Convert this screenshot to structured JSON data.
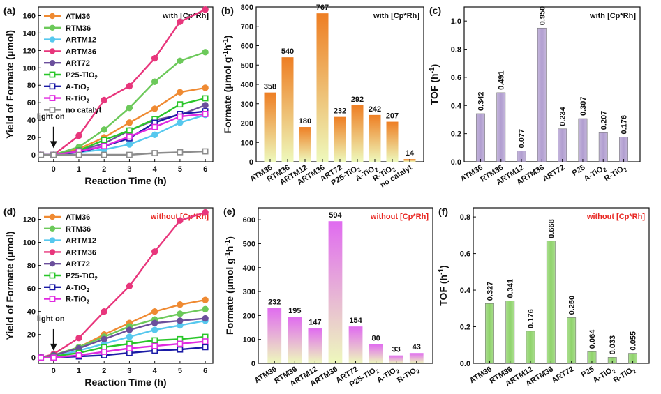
{
  "chart_data": [
    {
      "panel": "(a)",
      "type": "line",
      "annotation": "with [Cp*Rh]",
      "annotation_color": "#111111",
      "xlabel": "Reaction Time (h)",
      "ylabel": "Yield of Formate (μmol)",
      "xlim": [
        -0.6,
        6.3
      ],
      "ylim": [
        -8,
        170
      ],
      "xticks": [
        0,
        1,
        2,
        3,
        4,
        5,
        6
      ],
      "yticks": [
        0,
        20,
        40,
        60,
        80,
        100,
        120,
        140,
        160
      ],
      "x": [
        -0.5,
        0,
        1,
        2,
        3,
        4,
        5,
        6
      ],
      "light_on_label": "light on",
      "light_on_x": 0,
      "legend_position": "top-left",
      "series": [
        {
          "name": "ATM36",
          "color": "#ef8a32",
          "marker": "filled",
          "values": [
            0,
            0,
            7,
            20,
            37,
            53,
            72,
            77
          ]
        },
        {
          "name": "RTM36",
          "color": "#6cc95a",
          "marker": "filled",
          "values": [
            0,
            0,
            9,
            29,
            54,
            84,
            108,
            118
          ]
        },
        {
          "name": "ARTM12",
          "color": "#56c8ee",
          "marker": "filled",
          "values": [
            0,
            0,
            3,
            6,
            12,
            23,
            37,
            46
          ]
        },
        {
          "name": "ARTM36",
          "color": "#e8367c",
          "marker": "filled",
          "values": [
            0,
            0,
            22,
            63,
            79,
            111,
            153,
            167
          ]
        },
        {
          "name": "ART72",
          "color": "#6b4f9c",
          "marker": "filled",
          "values": [
            0,
            0,
            5,
            13,
            28,
            40,
            46,
            57
          ]
        },
        {
          "name": "P25-TiO2",
          "color": "#29c629",
          "marker": "open",
          "values": [
            0,
            0,
            5,
            17,
            28,
            41,
            58,
            65
          ]
        },
        {
          "name": "A-TiO2",
          "color": "#1a1aa6",
          "marker": "open",
          "values": [
            0,
            0,
            3,
            10,
            19,
            37,
            47,
            50
          ]
        },
        {
          "name": "R-TiO2",
          "color": "#e02ae0",
          "marker": "open",
          "values": [
            0,
            0,
            4,
            10,
            21,
            32,
            44,
            47
          ]
        },
        {
          "name": "no catalyt",
          "color": "#8c8c8c",
          "marker": "open",
          "values": [
            0,
            0,
            0,
            0,
            0,
            2,
            3,
            4
          ]
        }
      ]
    },
    {
      "panel": "(b)",
      "type": "bar",
      "annotation": "with [Cp*Rh]",
      "annotation_color": "#111111",
      "ylabel": "Formate (μmol g⁻¹h⁻¹)",
      "ylim": [
        0,
        800
      ],
      "yticks": [
        0,
        100,
        200,
        300,
        400,
        500,
        600,
        700,
        800
      ],
      "gradient_top": "#ee7e23",
      "gradient_bottom": "#eef9bc",
      "categories": [
        "ATM36",
        "RTM36",
        "ARTM12",
        "ARTM36",
        "ART72",
        "P25-TiO2",
        "A-TiO2",
        "R-TiO2",
        "no catalyt"
      ],
      "values": [
        358,
        540,
        180,
        767,
        232,
        292,
        242,
        207,
        14
      ],
      "data_labels": [
        "358",
        "540",
        "180",
        "767",
        "232",
        "292",
        "242",
        "207",
        "14"
      ]
    },
    {
      "panel": "(c)",
      "type": "bar",
      "annotation": "with [Cp*Rh]",
      "annotation_color": "#111111",
      "ylabel": "TOF (h⁻¹)",
      "ylim": [
        0,
        1.1
      ],
      "yticks": [
        0.0,
        0.2,
        0.4,
        0.6,
        0.8,
        1.0
      ],
      "bar_color": "#b19ed0",
      "categories": [
        "ATM36",
        "RTM36",
        "ARTM12",
        "ARTM36",
        "ART72",
        "P25",
        "A-TiO2",
        "R-TiO2"
      ],
      "values": [
        0.342,
        0.491,
        0.077,
        0.95,
        0.234,
        0.307,
        0.207,
        0.176
      ],
      "data_labels": [
        "0.342",
        "0.491",
        "0.077",
        "0.950",
        "0.234",
        "0.307",
        "0.207",
        "0.176"
      ]
    },
    {
      "panel": "(d)",
      "type": "line",
      "annotation": "without [Cp*Rh]",
      "annotation_color": "#e8241f",
      "xlabel": "Reaction Time (h)",
      "ylabel": "Yield of Formate (μmol)",
      "xlim": [
        -0.6,
        6.3
      ],
      "ylim": [
        -5,
        130
      ],
      "xticks": [
        0,
        1,
        2,
        3,
        4,
        5,
        6
      ],
      "yticks": [
        0,
        20,
        40,
        60,
        80,
        100,
        120
      ],
      "x": [
        -0.5,
        0,
        1,
        2,
        3,
        4,
        5,
        6
      ],
      "light_on_label": "light on",
      "light_on_x": 0,
      "legend_position": "top-left",
      "series": [
        {
          "name": "ATM36",
          "color": "#ef8a32",
          "marker": "filled",
          "values": [
            0,
            2,
            9,
            20,
            30,
            40,
            46,
            50
          ]
        },
        {
          "name": "RTM36",
          "color": "#6cc95a",
          "marker": "filled",
          "values": [
            0,
            2,
            9,
            18,
            27,
            33,
            38,
            42
          ]
        },
        {
          "name": "ARTM12",
          "color": "#56c8ee",
          "marker": "filled",
          "values": [
            0,
            1,
            6,
            12,
            18,
            24,
            28,
            32
          ]
        },
        {
          "name": "ARTM36",
          "color": "#e8367c",
          "marker": "filled",
          "values": [
            0,
            3,
            17,
            40,
            62,
            92,
            119,
            126
          ]
        },
        {
          "name": "ART72",
          "color": "#6b4f9c",
          "marker": "filled",
          "values": [
            0,
            2,
            8,
            16,
            24,
            30,
            32,
            34
          ]
        },
        {
          "name": "P25-TiO2",
          "color": "#29c629",
          "marker": "open",
          "values": [
            0,
            1,
            4,
            9,
            12,
            15,
            16,
            18
          ]
        },
        {
          "name": "A-TiO2",
          "color": "#1a1aa6",
          "marker": "open",
          "values": [
            0,
            0,
            1,
            2,
            4,
            6,
            7,
            9
          ]
        },
        {
          "name": "R-TiO2",
          "color": "#e02ae0",
          "marker": "open",
          "values": [
            0,
            0,
            2,
            5,
            8,
            10,
            12,
            14
          ]
        }
      ]
    },
    {
      "panel": "(e)",
      "type": "bar",
      "annotation": "without [Cp*Rh]",
      "annotation_color": "#e8241f",
      "ylabel": "Formate (μmol g⁻¹h⁻¹)",
      "ylim": [
        0,
        650
      ],
      "yticks": [
        0,
        100,
        200,
        300,
        400,
        500,
        600
      ],
      "gradient_top": "#e06bf0",
      "gradient_bottom": "#eef9bc",
      "categories": [
        "ATM36",
        "RTM36",
        "ARTM12",
        "ARTM36",
        "ART72",
        "P25-TiO2",
        "A-TiO2",
        "R-TiO2"
      ],
      "values": [
        232,
        195,
        147,
        594,
        154,
        80,
        33,
        43
      ],
      "data_labels": [
        "232",
        "195",
        "147",
        "594",
        "154",
        "80",
        "33",
        "43"
      ]
    },
    {
      "panel": "(f)",
      "type": "bar",
      "annotation": "without [Cp*Rh]",
      "annotation_color": "#e8241f",
      "ylabel": "TOF (h⁻¹)",
      "ylim": [
        0,
        0.85
      ],
      "yticks": [
        0.0,
        0.2,
        0.4,
        0.6,
        0.8
      ],
      "bar_color": "#8fd36b",
      "categories": [
        "ATM36",
        "RTM36",
        "ARTM12",
        "ARTM36",
        "ART72",
        "P25",
        "A-TiO2",
        "R-TiO2"
      ],
      "values": [
        0.327,
        0.341,
        0.176,
        0.668,
        0.25,
        0.064,
        0.033,
        0.055
      ],
      "data_labels": [
        "0.327",
        "0.341",
        "0.176",
        "0.668",
        "0.250",
        "0.064",
        "0.033",
        "0.055"
      ]
    }
  ]
}
